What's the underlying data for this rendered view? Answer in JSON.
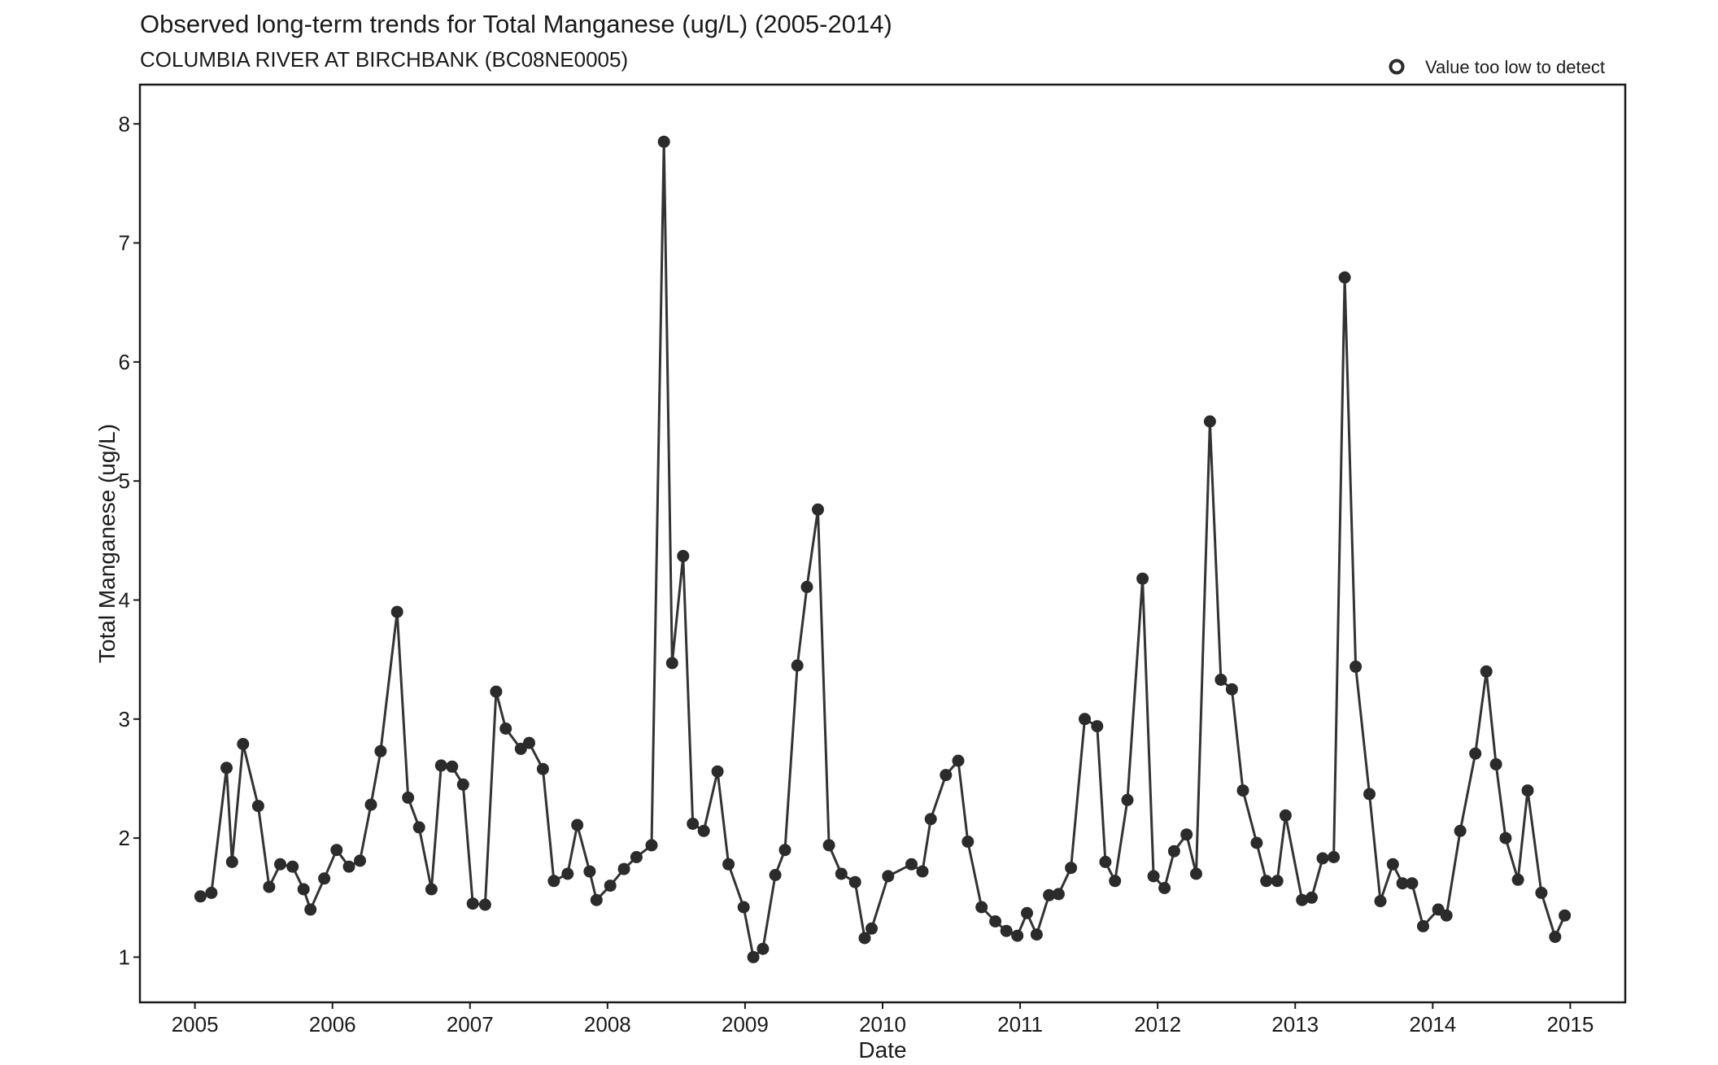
{
  "chart_data": {
    "type": "line",
    "title": "Observed long-term trends for Total Manganese (ug/L) (2005-2014)",
    "subtitle": "COLUMBIA RIVER AT BIRCHBANK (BC08NE0005)",
    "xlabel": "Date",
    "ylabel": "Total Manganese (ug/L)",
    "xlim": [
      2004.6,
      2015.4
    ],
    "ylim": [
      0.62,
      8.33
    ],
    "x_ticks": [
      "2005",
      "2006",
      "2007",
      "2008",
      "2009",
      "2010",
      "2011",
      "2012",
      "2013",
      "2014",
      "2015"
    ],
    "x_tick_values": [
      2005,
      2006,
      2007,
      2008,
      2009,
      2010,
      2011,
      2012,
      2013,
      2014,
      2015
    ],
    "y_ticks": [
      "1",
      "2",
      "3",
      "4",
      "5",
      "6",
      "7",
      "8"
    ],
    "y_tick_values": [
      1,
      2,
      3,
      4,
      5,
      6,
      7,
      8
    ],
    "grid": false,
    "legend": {
      "position": "top-right",
      "label": "Value too low to detect",
      "marker": "hollow-circle"
    },
    "colors": {
      "line": "#333333",
      "point": "#2b2b2b",
      "axis": "#1a1a1a"
    },
    "series": [
      {
        "x": [
          2005.04,
          2005.12,
          2005.23,
          2005.27,
          2005.35,
          2005.46,
          2005.54,
          2005.62,
          2005.71,
          2005.79,
          2005.84,
          2005.94,
          2006.03,
          2006.12,
          2006.2,
          2006.28,
          2006.35,
          2006.47,
          2006.55,
          2006.63,
          2006.72,
          2006.79,
          2006.87,
          2006.95,
          2007.02,
          2007.11,
          2007.19,
          2007.26,
          2007.37,
          2007.43,
          2007.53,
          2007.61,
          2007.71,
          2007.78,
          2007.87,
          2007.92,
          2008.02,
          2008.12,
          2008.21,
          2008.32,
          2008.41,
          2008.47,
          2008.55,
          2008.62,
          2008.7,
          2008.8,
          2008.88,
          2008.99,
          2009.06,
          2009.13,
          2009.22,
          2009.29,
          2009.38,
          2009.45,
          2009.53,
          2009.61,
          2009.7,
          2009.8,
          2009.87,
          2009.92,
          2010.04,
          2010.21,
          2010.29,
          2010.35,
          2010.46,
          2010.55,
          2010.62,
          2010.72,
          2010.82,
          2010.9,
          2010.98,
          2011.05,
          2011.12,
          2011.21,
          2011.28,
          2011.37,
          2011.47,
          2011.56,
          2011.62,
          2011.69,
          2011.78,
          2011.89,
          2011.97,
          2012.05,
          2012.12,
          2012.21,
          2012.28,
          2012.38,
          2012.46,
          2012.54,
          2012.62,
          2012.72,
          2012.79,
          2012.87,
          2012.93,
          2013.05,
          2013.12,
          2013.2,
          2013.28,
          2013.36,
          2013.44,
          2013.54,
          2013.62,
          2013.71,
          2013.78,
          2013.85,
          2013.93,
          2014.04,
          2014.1,
          2014.2,
          2014.31,
          2014.39,
          2014.46,
          2014.53,
          2014.62,
          2014.69,
          2014.79,
          2014.89,
          2014.96
        ],
        "y": [
          1.51,
          1.54,
          2.59,
          1.8,
          2.79,
          2.27,
          1.59,
          1.78,
          1.76,
          1.57,
          1.4,
          1.66,
          1.9,
          1.76,
          1.81,
          2.28,
          2.73,
          3.9,
          2.34,
          2.09,
          1.57,
          2.61,
          2.6,
          2.45,
          1.45,
          1.44,
          3.23,
          2.92,
          2.75,
          2.8,
          2.58,
          1.64,
          1.7,
          2.11,
          1.72,
          1.48,
          1.6,
          1.74,
          1.84,
          1.94,
          7.85,
          3.47,
          4.37,
          2.12,
          2.06,
          2.56,
          1.78,
          1.42,
          1.0,
          1.07,
          1.69,
          1.9,
          3.45,
          4.11,
          4.76,
          1.94,
          1.7,
          1.63,
          1.16,
          1.24,
          1.68,
          1.78,
          1.72,
          2.16,
          2.53,
          2.65,
          1.97,
          1.42,
          1.3,
          1.22,
          1.18,
          1.37,
          1.19,
          1.52,
          1.53,
          1.75,
          3.0,
          2.94,
          1.8,
          1.64,
          2.32,
          4.18,
          1.68,
          1.58,
          1.89,
          2.03,
          1.7,
          5.5,
          3.33,
          3.25,
          2.4,
          1.96,
          1.64,
          1.64,
          2.19,
          1.48,
          1.5,
          1.83,
          1.84,
          6.71,
          3.44,
          2.37,
          1.47,
          1.78,
          1.62,
          1.62,
          1.26,
          1.4,
          1.35,
          2.06,
          2.71,
          3.4,
          2.62,
          2.0,
          1.65,
          2.4,
          1.54,
          1.17,
          1.35
        ]
      }
    ]
  }
}
